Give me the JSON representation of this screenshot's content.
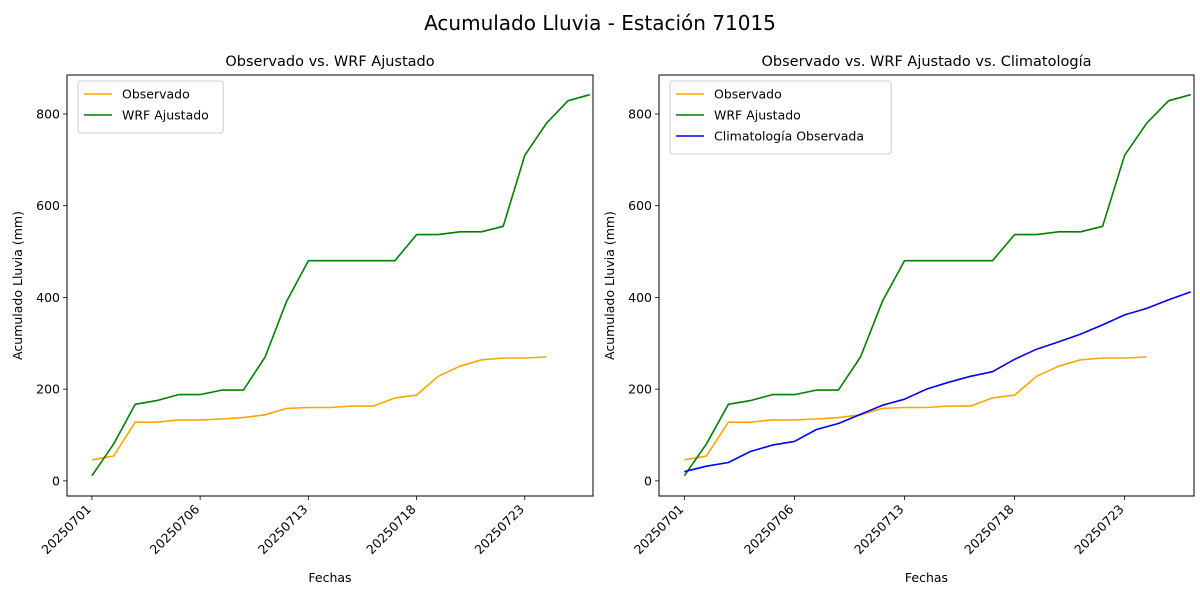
{
  "figure_title": "Acumulado Lluvia - Estación 71015",
  "colors": {
    "observado": "#ffa500",
    "wrf": "#008000",
    "clima": "#0000ff"
  },
  "chart_data": [
    {
      "type": "line",
      "title": "Observado vs. WRF Ajustado",
      "xlabel": "Fechas",
      "ylabel": "Acumulado Lluvia (mm)",
      "x_ticks": [
        "20250701",
        "20250706",
        "20250713",
        "20250718",
        "20250723"
      ],
      "x_tick_positions": [
        0,
        5,
        10,
        15,
        20
      ],
      "x_index_range": [
        -1.15,
        23.15
      ],
      "y_ticks": [
        0,
        200,
        400,
        600,
        800
      ],
      "ylim": [
        -33,
        885
      ],
      "legend": "upper-left",
      "series": [
        {
          "name": "Observado",
          "color": "#ffa500",
          "x": [
            0,
            1,
            2,
            3,
            4,
            5,
            6,
            7,
            8,
            9,
            10,
            11,
            12,
            13,
            14,
            15,
            16,
            17,
            18,
            19,
            20,
            21
          ],
          "values": [
            46,
            54,
            128,
            128,
            133,
            133,
            135,
            138,
            144,
            158,
            160,
            160,
            163,
            163,
            181,
            187,
            228,
            250,
            264,
            268,
            268,
            270
          ]
        },
        {
          "name": "WRF Ajustado",
          "color": "#008000",
          "x": [
            0,
            1,
            2,
            3,
            4,
            5,
            6,
            7,
            8,
            9,
            10,
            11,
            12,
            13,
            14,
            15,
            16,
            17,
            18,
            19,
            20,
            21,
            22,
            23
          ],
          "values": [
            11,
            80,
            167,
            175,
            188,
            188,
            198,
            198,
            270,
            392,
            480,
            480,
            480,
            480,
            480,
            537,
            537,
            543,
            543,
            555,
            710,
            780,
            829,
            842
          ]
        }
      ]
    },
    {
      "type": "line",
      "title": "Observado vs. WRF Ajustado vs. Climatología",
      "xlabel": "Fechas",
      "ylabel": "Acumulado Lluvia (mm)",
      "x_ticks": [
        "20250701",
        "20250706",
        "20250713",
        "20250718",
        "20250723"
      ],
      "x_tick_positions": [
        0,
        5,
        10,
        15,
        20
      ],
      "x_index_range": [
        -1.15,
        23.15
      ],
      "y_ticks": [
        0,
        200,
        400,
        600,
        800
      ],
      "ylim": [
        -33,
        885
      ],
      "legend": "upper-left",
      "series": [
        {
          "name": "Observado",
          "color": "#ffa500",
          "x": [
            0,
            1,
            2,
            3,
            4,
            5,
            6,
            7,
            8,
            9,
            10,
            11,
            12,
            13,
            14,
            15,
            16,
            17,
            18,
            19,
            20,
            21
          ],
          "values": [
            46,
            54,
            128,
            128,
            133,
            133,
            135,
            138,
            144,
            158,
            160,
            160,
            163,
            163,
            181,
            187,
            228,
            250,
            264,
            268,
            268,
            270
          ]
        },
        {
          "name": "WRF Ajustado",
          "color": "#008000",
          "x": [
            0,
            1,
            2,
            3,
            4,
            5,
            6,
            7,
            8,
            9,
            10,
            11,
            12,
            13,
            14,
            15,
            16,
            17,
            18,
            19,
            20,
            21,
            22,
            23
          ],
          "values": [
            11,
            80,
            167,
            175,
            188,
            188,
            198,
            198,
            270,
            392,
            480,
            480,
            480,
            480,
            480,
            537,
            537,
            543,
            543,
            555,
            710,
            780,
            829,
            842
          ]
        },
        {
          "name": "Climatología Observada",
          "color": "#0000ff",
          "x": [
            0,
            1,
            2,
            3,
            4,
            5,
            6,
            7,
            8,
            9,
            10,
            11,
            12,
            13,
            14,
            15,
            16,
            17,
            18,
            19,
            20,
            21,
            22,
            23
          ],
          "values": [
            20,
            32,
            40,
            64,
            78,
            86,
            112,
            125,
            145,
            165,
            178,
            200,
            215,
            228,
            238,
            265,
            287,
            303,
            320,
            340,
            362,
            376,
            395,
            412
          ]
        }
      ]
    }
  ]
}
